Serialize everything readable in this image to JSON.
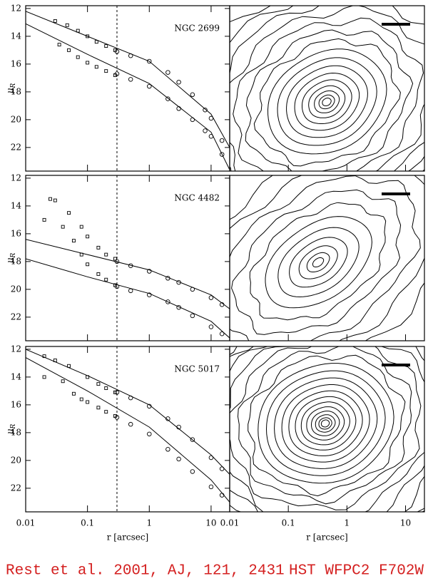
{
  "chart_data": [
    {
      "type": "scatter",
      "title": "NGC 2699",
      "xscale": "log",
      "xlim": [
        0.01,
        20
      ],
      "xticks": [
        0.01,
        0.1,
        1,
        10
      ],
      "ylim": [
        11.8,
        23.7
      ],
      "yinvert": true,
      "yticks": [
        12,
        14,
        16,
        18,
        20,
        22
      ],
      "ylabel": "μ",
      "ylabel_sub": "R",
      "vline": 0.3,
      "series": [
        {
          "marker": "square",
          "x": [
            0.03,
            0.047,
            0.07,
            0.1,
            0.14,
            0.2,
            0.28
          ],
          "values": [
            12.9,
            13.2,
            13.6,
            14.0,
            14.4,
            14.7,
            15.0
          ]
        },
        {
          "marker": "circle",
          "x": [
            0.3,
            0.5,
            1,
            2,
            3,
            5,
            8,
            10,
            15
          ],
          "values": [
            15.1,
            15.4,
            15.8,
            16.6,
            17.3,
            18.2,
            19.3,
            19.9,
            21.5
          ]
        },
        {
          "marker": "square",
          "x": [
            0.035,
            0.05,
            0.07,
            0.1,
            0.14,
            0.2,
            0.28
          ],
          "values": [
            14.6,
            15.0,
            15.5,
            15.9,
            16.2,
            16.5,
            16.8
          ]
        },
        {
          "marker": "circle",
          "x": [
            0.3,
            0.5,
            1,
            2,
            3,
            5,
            8,
            10,
            15
          ],
          "values": [
            16.7,
            17.1,
            17.6,
            18.5,
            19.2,
            20.0,
            20.8,
            21.2,
            22.5
          ]
        }
      ],
      "lines": [
        {
          "x": [
            0.01,
            0.1,
            1,
            10,
            20
          ],
          "values": [
            12.2,
            14.0,
            15.8,
            19.6,
            22.0
          ]
        },
        {
          "x": [
            0.01,
            0.1,
            1,
            10,
            20
          ],
          "values": [
            13.1,
            15.3,
            17.4,
            20.9,
            23.6
          ]
        }
      ]
    },
    {
      "type": "scatter",
      "title": "NGC 4482",
      "xscale": "log",
      "xlim": [
        0.01,
        20
      ],
      "xticks": [
        0.01,
        0.1,
        1,
        10
      ],
      "ylim": [
        11.8,
        23.7
      ],
      "yinvert": true,
      "yticks": [
        12,
        14,
        16,
        18,
        20,
        22
      ],
      "ylabel": "μ",
      "ylabel_sub": "R",
      "vline": 0.3,
      "series": [
        {
          "marker": "square",
          "x": [
            0.025,
            0.03,
            0.05,
            0.08,
            0.1,
            0.15,
            0.2,
            0.28
          ],
          "values": [
            13.5,
            13.6,
            14.5,
            15.5,
            16.2,
            17.0,
            17.5,
            17.8
          ]
        },
        {
          "marker": "circle",
          "x": [
            0.3,
            0.5,
            1,
            2,
            3,
            5,
            10,
            15
          ],
          "values": [
            18.0,
            18.3,
            18.7,
            19.2,
            19.5,
            20.0,
            20.6,
            21.1
          ]
        },
        {
          "marker": "square",
          "x": [
            0.02,
            0.04,
            0.06,
            0.08,
            0.1,
            0.15,
            0.2,
            0.28
          ],
          "values": [
            15.0,
            15.5,
            16.5,
            17.5,
            18.2,
            18.9,
            19.3,
            19.7
          ]
        },
        {
          "marker": "circle",
          "x": [
            0.3,
            0.5,
            1,
            2,
            3,
            5,
            10,
            15
          ],
          "values": [
            19.8,
            20.1,
            20.4,
            20.9,
            21.3,
            21.9,
            22.7,
            23.2
          ]
        }
      ],
      "lines": [
        {
          "x": [
            0.01,
            0.1,
            1,
            10,
            20
          ],
          "values": [
            16.4,
            17.5,
            18.6,
            20.4,
            21.4
          ]
        },
        {
          "x": [
            0.01,
            0.1,
            1,
            10,
            20
          ],
          "values": [
            17.8,
            19.1,
            20.3,
            22.3,
            23.5
          ]
        }
      ]
    },
    {
      "type": "scatter",
      "title": "NGC 5017",
      "xscale": "log",
      "xlim": [
        0.01,
        20
      ],
      "xticks": [
        0.01,
        0.1,
        1,
        10
      ],
      "ylim": [
        11.8,
        23.7
      ],
      "yinvert": true,
      "yticks": [
        12,
        14,
        16,
        18,
        20,
        22
      ],
      "ylabel": "μ",
      "ylabel_sub": "R",
      "vline": 0.3,
      "xlabel": "r [arcsec]",
      "series": [
        {
          "marker": "square",
          "x": [
            0.02,
            0.03,
            0.05,
            0.1,
            0.15,
            0.2,
            0.28
          ],
          "values": [
            12.5,
            12.8,
            13.2,
            14.0,
            14.5,
            14.8,
            15.1
          ]
        },
        {
          "marker": "circle",
          "x": [
            0.3,
            0.5,
            1,
            2,
            3,
            5,
            10,
            15
          ],
          "values": [
            15.1,
            15.5,
            16.1,
            17.0,
            17.6,
            18.5,
            19.8,
            20.6
          ]
        },
        {
          "marker": "square",
          "x": [
            0.02,
            0.04,
            0.06,
            0.08,
            0.1,
            0.15,
            0.2,
            0.28
          ],
          "values": [
            14.0,
            14.3,
            15.2,
            15.6,
            15.8,
            16.2,
            16.5,
            16.8
          ]
        },
        {
          "marker": "circle",
          "x": [
            0.3,
            0.5,
            1,
            2,
            3,
            5,
            10,
            15
          ],
          "values": [
            16.9,
            17.4,
            18.1,
            19.2,
            19.9,
            20.8,
            21.9,
            22.5
          ]
        }
      ],
      "lines": [
        {
          "x": [
            0.01,
            0.1,
            1,
            10,
            20
          ],
          "values": [
            12.0,
            13.9,
            16.0,
            19.6,
            21.0
          ]
        },
        {
          "x": [
            0.01,
            0.1,
            1,
            10,
            20
          ],
          "values": [
            12.6,
            15.0,
            17.6,
            21.4,
            23.0
          ]
        }
      ]
    }
  ],
  "image_axis": {
    "xscale": "log",
    "xlim": [
      0.01,
      21
    ],
    "xticks": [
      0.01,
      0.1,
      1,
      10
    ],
    "xlabel": "r [arcsec]"
  },
  "footer": {
    "left": "Rest et al. 2001, AJ, 121, 2431",
    "right": "HST WFPC2 F702W"
  }
}
